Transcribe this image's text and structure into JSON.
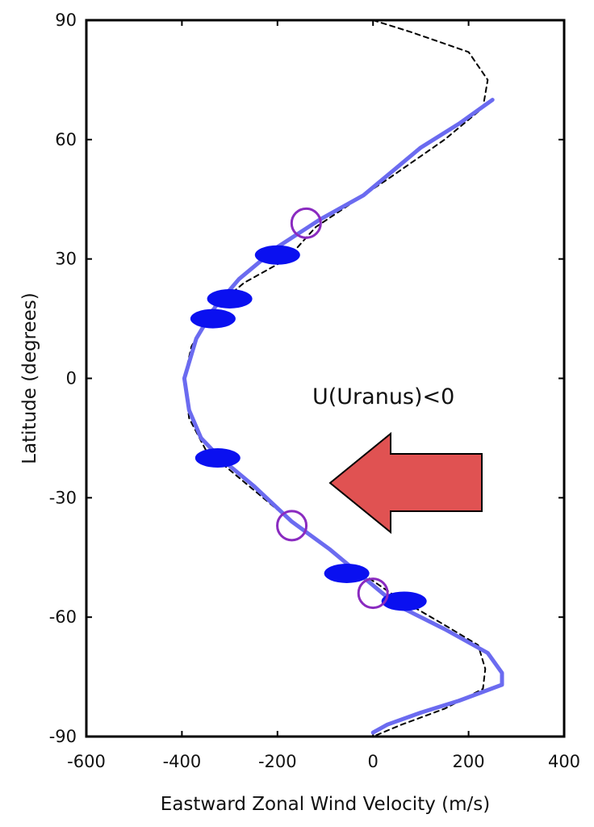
{
  "chart_data": {
    "type": "line",
    "xlabel": "Eastward Zonal Wind Velocity (m/s)",
    "ylabel": "Latitude (degrees)",
    "xlim": [
      -600,
      400
    ],
    "ylim": [
      -90,
      90
    ],
    "xticks": [
      "-600",
      "-400",
      "-200",
      "0",
      "200",
      "400"
    ],
    "yticks": [
      "90",
      "60",
      "30",
      "0",
      "-30",
      "-60",
      "-90"
    ],
    "xtick_values": [
      -600,
      -400,
      -200,
      0,
      200,
      400
    ],
    "ytick_values": [
      90,
      60,
      30,
      0,
      -30,
      -60,
      -90
    ],
    "grid": false,
    "annotation": {
      "text": "U(Uranus)<0",
      "arrow_direction": "left",
      "arrow_color": "#e05252"
    },
    "series": [
      {
        "style": "dashed",
        "color": "#000000",
        "points": [
          {
            "x": 0,
            "y": 90
          },
          {
            "x": 80,
            "y": 87
          },
          {
            "x": 200,
            "y": 82
          },
          {
            "x": 240,
            "y": 75
          },
          {
            "x": 230,
            "y": 68
          },
          {
            "x": 150,
            "y": 60
          },
          {
            "x": 30,
            "y": 50
          },
          {
            "x": -120,
            "y": 38
          },
          {
            "x": -180,
            "y": 30
          },
          {
            "x": -270,
            "y": 24
          },
          {
            "x": -340,
            "y": 17
          },
          {
            "x": -380,
            "y": 8
          },
          {
            "x": -395,
            "y": 0
          },
          {
            "x": -385,
            "y": -10
          },
          {
            "x": -350,
            "y": -18
          },
          {
            "x": -280,
            "y": -25
          },
          {
            "x": -180,
            "y": -35
          },
          {
            "x": -60,
            "y": -46
          },
          {
            "x": 50,
            "y": -55
          },
          {
            "x": 150,
            "y": -62
          },
          {
            "x": 220,
            "y": -67
          },
          {
            "x": 235,
            "y": -73
          },
          {
            "x": 230,
            "y": -78
          },
          {
            "x": 150,
            "y": -83
          },
          {
            "x": 60,
            "y": -87
          },
          {
            "x": 0,
            "y": -90
          }
        ]
      },
      {
        "style": "solid",
        "color": "#6b6bf0",
        "points": [
          {
            "x": 250,
            "y": 70
          },
          {
            "x": 180,
            "y": 64
          },
          {
            "x": 100,
            "y": 58
          },
          {
            "x": 40,
            "y": 52
          },
          {
            "x": -20,
            "y": 46
          },
          {
            "x": -110,
            "y": 40
          },
          {
            "x": -200,
            "y": 33
          },
          {
            "x": -280,
            "y": 25
          },
          {
            "x": -330,
            "y": 18
          },
          {
            "x": -370,
            "y": 10
          },
          {
            "x": -395,
            "y": 0
          },
          {
            "x": -385,
            "y": -8
          },
          {
            "x": -360,
            "y": -15
          },
          {
            "x": -320,
            "y": -20
          },
          {
            "x": -250,
            "y": -27
          },
          {
            "x": -170,
            "y": -36
          },
          {
            "x": -90,
            "y": -43
          },
          {
            "x": -20,
            "y": -50
          },
          {
            "x": 50,
            "y": -57
          },
          {
            "x": 150,
            "y": -63
          },
          {
            "x": 240,
            "y": -69
          },
          {
            "x": 270,
            "y": -74
          },
          {
            "x": 270,
            "y": -77
          },
          {
            "x": 180,
            "y": -81
          },
          {
            "x": 100,
            "y": -84
          },
          {
            "x": 30,
            "y": -87
          },
          {
            "x": 0,
            "y": -89
          }
        ]
      }
    ],
    "filled_markers": {
      "color": "#0a10f0",
      "points": [
        {
          "x": -200,
          "y": 31
        },
        {
          "x": -300,
          "y": 20
        },
        {
          "x": -335,
          "y": 15
        },
        {
          "x": -325,
          "y": -20
        },
        {
          "x": -55,
          "y": -49
        },
        {
          "x": 65,
          "y": -56
        }
      ]
    },
    "open_markers": {
      "color": "#8a2bc0",
      "points": [
        {
          "x": -140,
          "y": 39
        },
        {
          "x": -170,
          "y": -37
        },
        {
          "x": 0,
          "y": -54
        }
      ]
    }
  }
}
